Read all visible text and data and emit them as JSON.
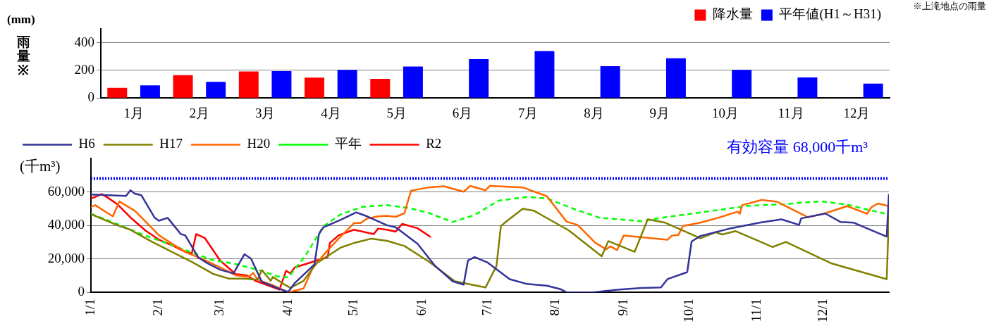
{
  "chart_data": [
    {
      "type": "bar",
      "categories": [
        "1月",
        "2月",
        "3月",
        "4月",
        "5月",
        "6月",
        "7月",
        "8月",
        "9月",
        "10月",
        "11月",
        "12月"
      ],
      "series": [
        {
          "name": "降水量",
          "color": "#ff0000",
          "values": [
            73,
            165,
            192,
            147,
            139,
            null,
            null,
            null,
            null,
            null,
            null,
            null
          ]
        },
        {
          "name": "平年値(H1～H31)",
          "color": "#0000ff",
          "values": [
            91,
            117,
            194,
            204,
            228,
            281,
            339,
            230,
            288,
            203,
            149,
            104
          ]
        }
      ],
      "ylabel": "雨量※",
      "annotations": [
        "(mm)",
        "※上滝地点の雨量"
      ],
      "ylim": [
        0,
        500
      ],
      "yticks": [
        0,
        200,
        400
      ],
      "grid": "y",
      "legend": "top right"
    },
    {
      "type": "line",
      "ylabel": "(千m³)",
      "xlim": [
        "--01-01",
        "--12-31"
      ],
      "xticks": [
        {
          "value": "--01-01",
          "label": "1/1"
        },
        {
          "value": "--02-01",
          "label": "2/1"
        },
        {
          "value": "--03-01",
          "label": "3/1"
        },
        {
          "value": "--04-01",
          "label": "4/1"
        },
        {
          "value": "--05-01",
          "label": "5/1"
        },
        {
          "value": "--06-01",
          "label": "6/1"
        },
        {
          "value": "--07-01",
          "label": "7/1"
        },
        {
          "value": "--08-01",
          "label": "8/1"
        },
        {
          "value": "--09-01",
          "label": "9/1"
        },
        {
          "value": "--10-01",
          "label": "10/1"
        },
        {
          "value": "--11-01",
          "label": "11/1"
        },
        {
          "value": "--12-01",
          "label": "12/1"
        }
      ],
      "ylim": [
        0,
        80000
      ],
      "yticks": [
        {
          "value": 0,
          "label": "0"
        },
        {
          "value": 20000,
          "label": "20,000"
        },
        {
          "value": 40000,
          "label": "40,000"
        },
        {
          "value": 60000,
          "label": "60,000"
        }
      ],
      "grid": "y",
      "legend": "top left",
      "marker": "none",
      "ref_lines": [
        {
          "axis": "y",
          "value": 68000,
          "label": "有効容量 68,000千m³",
          "color": "#0000ff",
          "line_style": "dotted"
        }
      ],
      "series": [
        {
          "name": "H6",
          "color": "#333399",
          "line_style": "solid",
          "x": [
            "--01-01",
            "--01-17",
            "--01-19",
            "--01-21",
            "--01-24",
            "--01-30",
            "--02-01",
            "--02-05",
            "--02-11",
            "--02-13",
            "--02-19",
            "--02-23",
            "--03-01",
            "--03-07",
            "--03-12",
            "--03-15",
            "--03-20",
            "--03-29",
            "--04-01",
            "--04-04",
            "--04-11",
            "--04-13",
            "--04-15",
            "--04-17",
            "--04-25",
            "--05-02",
            "--05-07",
            "--05-16",
            "--05-20",
            "--05-30",
            "--06-07",
            "--06-15",
            "--06-20",
            "--06-22",
            "--06-25",
            "--07-01",
            "--07-11",
            "--07-19",
            "--07-28",
            "--08-03",
            "--08-06",
            "--08-18",
            "--08-29",
            "--09-09",
            "--09-18",
            "--09-21",
            "--09-30",
            "--10-02",
            "--10-06",
            "--10-20",
            "--11-02",
            "--11-12",
            "--11-20",
            "--11-21",
            "--12-02",
            "--12-09",
            "--12-15",
            "--12-30",
            "--12-31"
          ],
          "values": [
            58400,
            57600,
            61000,
            59000,
            58000,
            44700,
            42800,
            44500,
            34800,
            34100,
            20800,
            17500,
            13500,
            11300,
            22800,
            20200,
            6200,
            1600,
            300,
            5600,
            14200,
            16900,
            34800,
            38800,
            43400,
            47800,
            45400,
            40100,
            38900,
            29000,
            15800,
            6600,
            4600,
            19100,
            21100,
            17800,
            7900,
            5000,
            4000,
            2000,
            0,
            0,
            1600,
            2600,
            2900,
            7900,
            12100,
            30400,
            33700,
            38300,
            41600,
            43600,
            40300,
            44200,
            47100,
            42000,
            41600,
            33300,
            58700
          ]
        },
        {
          "name": "H17",
          "color": "#808000",
          "line_style": "solid",
          "x": [
            "--01-01",
            "--01-13",
            "--01-19",
            "--01-29",
            "--02-11",
            "--02-16",
            "--02-26",
            "--03-05",
            "--03-12",
            "--03-18",
            "--03-20",
            "--03-24",
            "--03-25",
            "--03-30",
            "--04-02",
            "--04-08",
            "--04-14",
            "--04-25",
            "--05-01",
            "--05-09",
            "--05-16",
            "--05-24",
            "--06-04",
            "--06-16",
            "--06-30",
            "--07-05",
            "--07-07",
            "--07-10",
            "--07-17",
            "--07-22",
            "--08-07",
            "--08-22",
            "--08-25",
            "--09-06",
            "--09-12",
            "--09-20",
            "--10-06",
            "--10-13",
            "--10-16",
            "--10-22",
            "--11-08",
            "--11-14",
            "--12-05",
            "--12-30",
            "--12-31"
          ],
          "values": [
            46700,
            40100,
            37400,
            30100,
            21500,
            18200,
            10900,
            8200,
            8200,
            7600,
            13300,
            6900,
            9200,
            4900,
            2700,
            6900,
            17500,
            26800,
            29500,
            32100,
            30800,
            27700,
            18500,
            6600,
            2900,
            15800,
            39600,
            42900,
            49900,
            48800,
            37000,
            21500,
            30600,
            24200,
            43600,
            41600,
            32300,
            35900,
            34600,
            36600,
            27100,
            30100,
            17200,
            7900,
            46900
          ]
        },
        {
          "name": "H20",
          "color": "#ff6600",
          "line_style": "solid",
          "x": [
            "--01-01",
            "--01-03",
            "--01-07",
            "--01-11",
            "--01-14",
            "--01-21",
            "--01-27",
            "--02-01",
            "--02-08",
            "--02-14",
            "--02-21",
            "--03-01",
            "--03-08",
            "--03-14",
            "--03-16",
            "--03-18",
            "--03-25",
            "--04-01",
            "--04-08",
            "--04-12",
            "--04-17",
            "--04-24",
            "--05-01",
            "--05-04",
            "--05-07",
            "--05-12",
            "--05-16",
            "--05-20",
            "--05-24",
            "--05-27",
            "--06-04",
            "--06-11",
            "--06-20",
            "--06-23",
            "--06-30",
            "--07-02",
            "--07-17",
            "--07-28",
            "--08-06",
            "--08-11",
            "--08-19",
            "--08-24",
            "--08-26",
            "--08-29",
            "--09-01",
            "--09-21",
            "--09-23",
            "--09-26",
            "--09-28",
            "--10-06",
            "--10-15",
            "--10-23",
            "--10-24",
            "--10-25",
            "--11-03",
            "--11-10",
            "--11-24",
            "--12-01",
            "--12-12",
            "--12-21",
            "--12-23",
            "--12-26",
            "--12-31"
          ],
          "values": [
            51000,
            52100,
            48700,
            45400,
            54300,
            48700,
            40800,
            34100,
            28200,
            23500,
            19900,
            14900,
            10200,
            9200,
            11600,
            7600,
            4200,
            0,
            2300,
            14200,
            22200,
            32100,
            41400,
            41400,
            44100,
            45400,
            45700,
            45100,
            47300,
            60700,
            62700,
            63400,
            60100,
            63600,
            61000,
            63600,
            62700,
            57400,
            42200,
            40300,
            29700,
            25700,
            27500,
            25300,
            33900,
            31400,
            33900,
            34300,
            39600,
            41600,
            44900,
            48200,
            46900,
            52100,
            55200,
            54100,
            44900,
            46900,
            51500,
            46900,
            50800,
            53100,
            51500
          ]
        },
        {
          "name": "平年",
          "color": "#00ff00",
          "line_style": "dashed",
          "x": [
            "--01-01",
            "--01-13",
            "--01-24",
            "--02-03",
            "--02-14",
            "--02-25",
            "--03-08",
            "--03-18",
            "--03-27",
            "--04-01",
            "--04-09",
            "--04-17",
            "--04-25",
            "--05-05",
            "--05-16",
            "--05-26",
            "--06-04",
            "--06-15",
            "--06-25",
            "--07-06",
            "--07-19",
            "--07-28",
            "--08-10",
            "--08-21",
            "--09-09",
            "--09-20",
            "--10-02",
            "--10-28",
            "--11-13",
            "--11-30",
            "--12-12",
            "--12-21",
            "--12-31"
          ],
          "values": [
            47000,
            40800,
            34800,
            30100,
            24800,
            19500,
            16900,
            13500,
            9600,
            8900,
            22200,
            39400,
            46700,
            51100,
            52100,
            50400,
            47500,
            42000,
            46200,
            54800,
            57000,
            56100,
            49500,
            44600,
            42500,
            44900,
            47000,
            51700,
            52700,
            54400,
            52400,
            49500,
            46500
          ]
        },
        {
          "name": "R2",
          "color": "#ff0000",
          "line_style": "solid",
          "x": [
            "--01-01",
            "--01-06",
            "--01-09",
            "--01-13",
            "--01-19",
            "--01-26",
            "--02-01",
            "--02-08",
            "--02-13",
            "--02-16",
            "--02-18",
            "--02-22",
            "--03-01",
            "--03-08",
            "--03-13",
            "--03-17",
            "--03-28",
            "--03-31",
            "--04-02",
            "--04-04",
            "--04-09",
            "--04-19",
            "--04-20",
            "--04-24",
            "--05-01",
            "--05-10",
            "--05-12",
            "--05-16",
            "--05-20",
            "--05-23",
            "--05-30",
            "--06-05"
          ],
          "values": [
            56000,
            58700,
            56300,
            52700,
            44800,
            36800,
            31500,
            27500,
            24200,
            23200,
            34800,
            32400,
            18900,
            10900,
            10200,
            6900,
            1600,
            12900,
            11300,
            14900,
            16900,
            21100,
            29500,
            34100,
            37400,
            34800,
            38100,
            37400,
            36300,
            40900,
            38300,
            33000
          ]
        }
      ]
    }
  ]
}
